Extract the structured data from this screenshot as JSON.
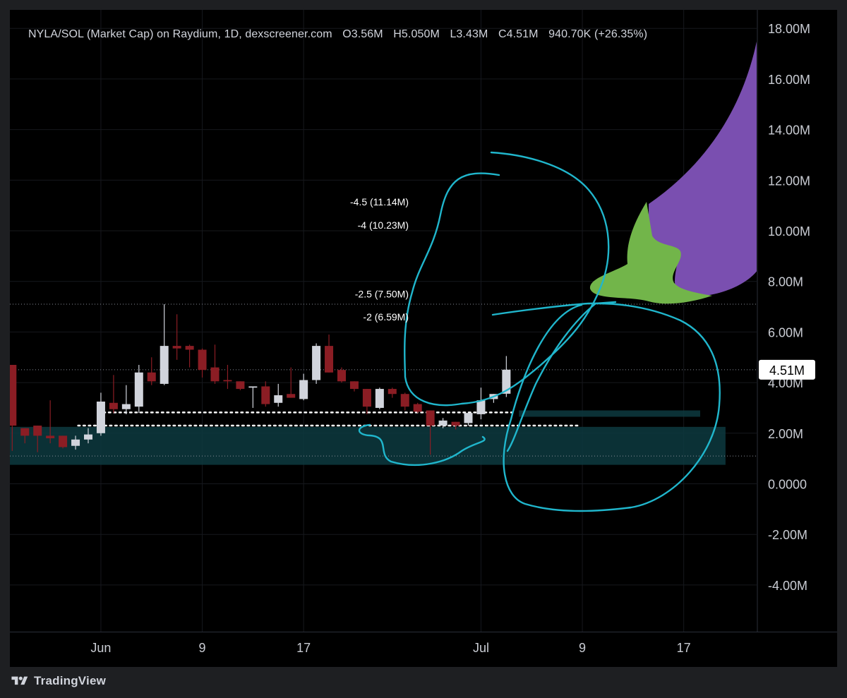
{
  "header": {
    "symbol": "NYLA/SOL (Market Cap) on Raydium, 1D, dexscreener.com",
    "open": "O3.56M",
    "high": "H5.050M",
    "low": "L3.43M",
    "close": "C4.51M",
    "change": "940.70K (+26.35%)"
  },
  "branding": {
    "name": "TradingView",
    "logo_icon": "tradingview-logo-icon"
  },
  "colors": {
    "background": "#000000",
    "up_candle": "#d1d4dc",
    "down_candle": "#8b1d24",
    "annotation_stroke": "#20b6cc",
    "zone_fill": "#0d3a3f",
    "eggplant_body": "#7a4fb0",
    "eggplant_cap": "#72b54a"
  },
  "chart_data": {
    "type": "candlestick",
    "title": "NYLA/SOL (Market Cap) on Raydium, 1D, dexscreener.com",
    "ylim": [
      -5.7,
      18.6
    ],
    "y_unit": "M",
    "y_ticks": [
      {
        "value": 18,
        "label": "18.00M"
      },
      {
        "value": 16,
        "label": "16.00M"
      },
      {
        "value": 14,
        "label": "14.00M"
      },
      {
        "value": 12,
        "label": "12.00M"
      },
      {
        "value": 10,
        "label": "10.00M"
      },
      {
        "value": 8,
        "label": "8.00M"
      },
      {
        "value": 6,
        "label": "6.00M"
      },
      {
        "value": 4,
        "label": "4.00M"
      },
      {
        "value": 2,
        "label": "2.00M"
      },
      {
        "value": 0,
        "label": "0.0000"
      },
      {
        "value": -2,
        "label": "-2.00M"
      },
      {
        "value": -4,
        "label": "-4.00M"
      }
    ],
    "x_ticks": [
      {
        "day": 1,
        "label": "Jun"
      },
      {
        "day": 9,
        "label": "9"
      },
      {
        "day": 17,
        "label": "17"
      },
      {
        "day": 31,
        "label": "Jul"
      },
      {
        "day": 39,
        "label": "9"
      },
      {
        "day": 47,
        "label": "17"
      }
    ],
    "price_badge": {
      "value": 4.51,
      "label": "4.51M"
    },
    "fib_levels": [
      {
        "label": "-4.5 (11.14M)",
        "value": 11.14
      },
      {
        "label": "-4 (10.23M)",
        "value": 10.23
      },
      {
        "label": "-2.5 (7.50M)",
        "value": 7.5
      },
      {
        "label": "-2 (6.59M)",
        "value": 6.59
      }
    ],
    "horizontal_lines": [
      {
        "value": 7.1,
        "style": "dotted"
      },
      {
        "value": 4.51,
        "style": "dotted"
      },
      {
        "value": 1.1,
        "style": "dotted"
      }
    ],
    "support_lines": [
      {
        "value": 2.82,
        "from_day": 1.2,
        "to_day": 33.5
      },
      {
        "value": 2.3,
        "from_day": -0.8,
        "to_day": 38.8
      }
    ],
    "zones": [
      {
        "from_day": -6.2,
        "to_day": 50.3,
        "bottom": 0.75,
        "top": 2.25
      },
      {
        "from_day": 34.0,
        "to_day": 48.3,
        "bottom": 2.65,
        "top": 2.9
      }
    ],
    "candles": [
      {
        "day": -6,
        "open": 4.7,
        "high": 4.7,
        "low": 1.3,
        "close": 2.3
      },
      {
        "day": -5,
        "open": 2.2,
        "high": 2.2,
        "low": 1.6,
        "close": 1.9
      },
      {
        "day": -4,
        "open": 2.3,
        "high": 2.3,
        "low": 1.25,
        "close": 1.9
      },
      {
        "day": -3,
        "open": 1.9,
        "high": 3.3,
        "low": 1.6,
        "close": 1.8
      },
      {
        "day": -2,
        "open": 1.9,
        "high": 1.9,
        "low": 1.4,
        "close": 1.45
      },
      {
        "day": -1,
        "open": 1.5,
        "high": 1.9,
        "low": 1.35,
        "close": 1.75
      },
      {
        "day": 0,
        "open": 1.75,
        "high": 2.2,
        "low": 1.6,
        "close": 1.95
      },
      {
        "day": 1,
        "open": 2.0,
        "high": 3.6,
        "low": 1.9,
        "close": 3.25
      },
      {
        "day": 2,
        "open": 3.2,
        "high": 4.3,
        "low": 2.8,
        "close": 2.95
      },
      {
        "day": 3,
        "open": 2.95,
        "high": 3.9,
        "low": 2.75,
        "close": 3.15
      },
      {
        "day": 4,
        "open": 3.05,
        "high": 4.7,
        "low": 2.8,
        "close": 4.4
      },
      {
        "day": 5,
        "open": 4.4,
        "high": 5.0,
        "low": 3.9,
        "close": 4.05
      },
      {
        "day": 6,
        "open": 3.95,
        "high": 7.1,
        "low": 3.9,
        "close": 5.45
      },
      {
        "day": 7,
        "open": 5.45,
        "high": 6.7,
        "low": 4.9,
        "close": 5.35
      },
      {
        "day": 8,
        "open": 5.45,
        "high": 5.5,
        "low": 4.6,
        "close": 5.3
      },
      {
        "day": 9,
        "open": 5.3,
        "high": 5.35,
        "low": 4.2,
        "close": 4.5
      },
      {
        "day": 10,
        "open": 4.6,
        "high": 5.5,
        "low": 3.95,
        "close": 4.05
      },
      {
        "day": 11,
        "open": 4.1,
        "high": 4.7,
        "low": 3.75,
        "close": 4.05
      },
      {
        "day": 12,
        "open": 4.05,
        "high": 4.05,
        "low": 3.7,
        "close": 3.75
      },
      {
        "day": 13,
        "open": 3.8,
        "high": 3.85,
        "low": 3.0,
        "close": 3.85
      },
      {
        "day": 14,
        "open": 3.85,
        "high": 4.05,
        "low": 3.05,
        "close": 3.15
      },
      {
        "day": 15,
        "open": 3.2,
        "high": 3.95,
        "low": 3.05,
        "close": 3.5
      },
      {
        "day": 16,
        "open": 3.55,
        "high": 4.6,
        "low": 3.4,
        "close": 3.4
      },
      {
        "day": 17,
        "open": 3.35,
        "high": 4.35,
        "low": 3.3,
        "close": 4.1
      },
      {
        "day": 18,
        "open": 4.1,
        "high": 5.55,
        "low": 3.95,
        "close": 5.45
      },
      {
        "day": 19,
        "open": 5.45,
        "high": 5.9,
        "low": 4.4,
        "close": 4.4
      },
      {
        "day": 20,
        "open": 4.5,
        "high": 4.6,
        "low": 4.0,
        "close": 4.05
      },
      {
        "day": 21,
        "open": 4.05,
        "high": 4.05,
        "low": 3.65,
        "close": 3.75
      },
      {
        "day": 22,
        "open": 3.75,
        "high": 3.75,
        "low": 2.75,
        "close": 3.05
      },
      {
        "day": 23,
        "open": 3.0,
        "high": 3.8,
        "low": 2.95,
        "close": 3.75
      },
      {
        "day": 24,
        "open": 3.75,
        "high": 3.8,
        "low": 3.4,
        "close": 3.55
      },
      {
        "day": 25,
        "open": 3.55,
        "high": 3.6,
        "low": 2.9,
        "close": 3.05
      },
      {
        "day": 26,
        "open": 3.15,
        "high": 3.2,
        "low": 2.8,
        "close": 2.85
      },
      {
        "day": 27,
        "open": 2.9,
        "high": 2.9,
        "low": 1.15,
        "close": 2.3
      },
      {
        "day": 28,
        "open": 2.3,
        "high": 2.6,
        "low": 2.2,
        "close": 2.5
      },
      {
        "day": 29,
        "open": 2.45,
        "high": 2.45,
        "low": 2.15,
        "close": 2.3
      },
      {
        "day": 30,
        "open": 2.4,
        "high": 2.8,
        "low": 2.3,
        "close": 2.8
      },
      {
        "day": 31,
        "open": 2.75,
        "high": 3.8,
        "low": 2.55,
        "close": 3.3
      },
      {
        "day": 32,
        "open": 3.35,
        "high": 3.55,
        "low": 3.2,
        "close": 3.55
      },
      {
        "day": 33,
        "open": 3.56,
        "high": 5.05,
        "low": 3.43,
        "close": 4.51
      }
    ]
  }
}
